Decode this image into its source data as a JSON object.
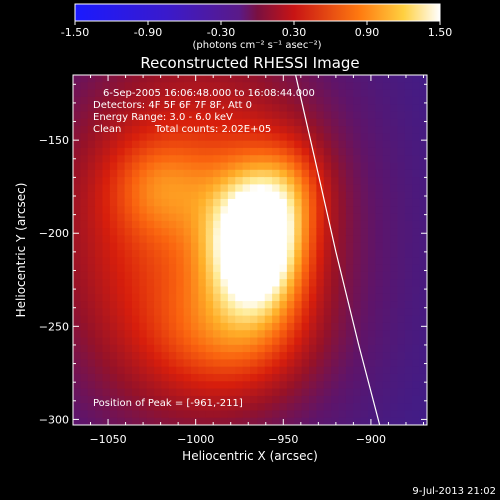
{
  "chart_data": {
    "type": "heatmap",
    "title": "Reconstructed RHESSI Image",
    "xlabel": "Heliocentric X (arcsec)",
    "ylabel": "Heliocentric Y (arcsec)",
    "xlim": [
      -1070,
      -868
    ],
    "ylim": [
      -303,
      -115
    ],
    "x_ticks": [
      -1050,
      -1000,
      -950,
      -900
    ],
    "y_ticks": [
      -150,
      -200,
      -250,
      -300
    ],
    "colorbar": {
      "range": [
        -1.5,
        1.5
      ],
      "ticks": [
        "-1.50",
        "-0.90",
        "-0.30",
        "0.30",
        "0.90",
        "1.50"
      ],
      "units_text": "(photons cm⁻² s⁻¹ asec⁻²)",
      "colors": [
        "#1a1aff",
        "#5a1a88",
        "#7a1040",
        "#c81414",
        "#ff7a10",
        "#ffffff"
      ]
    },
    "annotations": {
      "time": "6-Sep-2005 16:06:48.000 to 16:08:44.000",
      "detectors": "Detectors: 4F 5F 6F 7F 8F, Att 0",
      "energy": "Energy Range: 3.0 - 6.0 keV",
      "method": "Clean",
      "counts": "Total counts: 2.02E+05",
      "peak": "Position of Peak = [-961,-211]"
    },
    "peak": {
      "x": -961,
      "y": -211
    },
    "limb_curve": [
      {
        "x": -943,
        "y": -115
      },
      {
        "x": -932,
        "y": -160
      },
      {
        "x": -920,
        "y": -210
      },
      {
        "x": -907,
        "y": -260
      },
      {
        "x": -895,
        "y": -303
      }
    ],
    "sources": [
      {
        "x": -1000,
        "y": -200,
        "sx": 60,
        "sy": 75,
        "amp": 0.52
      },
      {
        "x": -965,
        "y": -205,
        "sx": 18,
        "sy": 26,
        "amp": 0.95
      },
      {
        "x": -1020,
        "y": -175,
        "sx": 20,
        "sy": 18,
        "amp": 0.22
      },
      {
        "x": -980,
        "y": -255,
        "sx": 30,
        "sy": 22,
        "amp": 0.24
      },
      {
        "x": -945,
        "y": -175,
        "sx": 14,
        "sy": 18,
        "amp": 0.2
      }
    ]
  },
  "footer": {
    "timestamp": "9-Jul-2013 21:02"
  }
}
